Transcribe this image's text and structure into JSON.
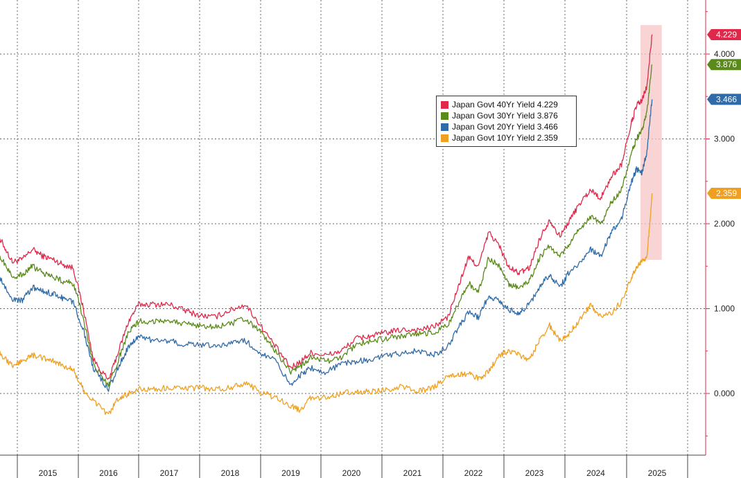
{
  "chart_data": {
    "type": "line",
    "title": "",
    "xlabel": "",
    "ylabel": "",
    "ylim": [
      -0.5,
      4.6
    ],
    "xlim": [
      "2014-08",
      "2025-06"
    ],
    "y_ticks": [
      "0.000",
      "1.000",
      "2.000",
      "3.000",
      "4.000"
    ],
    "y_tick_values": [
      0,
      1,
      2,
      3,
      4
    ],
    "x_ticks": [
      "2015",
      "2016",
      "2017",
      "2018",
      "2019",
      "2020",
      "2021",
      "2022",
      "2023",
      "2024",
      "2025"
    ],
    "grid": true,
    "legend_position": "top-right",
    "highlight_region": {
      "x_start": "2025-04",
      "x_end": "2025-06",
      "y_start": 1.6,
      "y_end": 4.3,
      "color": "#f5c6c6"
    },
    "series": [
      {
        "name": "Japan Govt 40Yr Yield",
        "last_value_label": "4.229",
        "color": "#e0294a",
        "x": [
          "2014-08",
          "2014-10",
          "2014-12",
          "2015-02",
          "2015-04",
          "2015-06",
          "2015-08",
          "2015-10",
          "2015-12",
          "2016-02",
          "2016-04",
          "2016-07",
          "2016-09",
          "2016-11",
          "2017-01",
          "2017-04",
          "2017-07",
          "2017-10",
          "2018-01",
          "2018-04",
          "2018-07",
          "2018-10",
          "2019-01",
          "2019-04",
          "2019-07",
          "2019-09",
          "2019-11",
          "2020-02",
          "2020-05",
          "2020-08",
          "2020-11",
          "2021-02",
          "2021-05",
          "2021-08",
          "2021-11",
          "2022-02",
          "2022-04",
          "2022-06",
          "2022-08",
          "2022-10",
          "2022-12",
          "2023-02",
          "2023-04",
          "2023-06",
          "2023-08",
          "2023-10",
          "2023-12",
          "2024-02",
          "2024-04",
          "2024-06",
          "2024-08",
          "2024-10",
          "2024-12",
          "2025-02",
          "2025-03",
          "2025-04",
          "2025-05",
          "2025-06"
        ],
        "values": [
          1.82,
          1.78,
          1.55,
          1.58,
          1.7,
          1.62,
          1.58,
          1.52,
          1.48,
          1.0,
          0.4,
          0.15,
          0.5,
          0.85,
          1.05,
          1.05,
          1.05,
          0.98,
          0.92,
          0.9,
          0.98,
          1.05,
          0.8,
          0.55,
          0.3,
          0.38,
          0.48,
          0.45,
          0.5,
          0.65,
          0.68,
          0.72,
          0.75,
          0.75,
          0.78,
          0.9,
          1.25,
          1.6,
          1.5,
          1.9,
          1.75,
          1.48,
          1.42,
          1.48,
          1.82,
          2.05,
          1.85,
          2.05,
          2.25,
          2.4,
          2.3,
          2.55,
          2.7,
          3.2,
          3.4,
          3.45,
          3.62,
          4.229
        ]
      },
      {
        "name": "Japan Govt 30Yr Yield",
        "last_value_label": "3.876",
        "color": "#5a8a1a",
        "x": [
          "2014-08",
          "2014-10",
          "2014-12",
          "2015-02",
          "2015-04",
          "2015-06",
          "2015-08",
          "2015-10",
          "2015-12",
          "2016-02",
          "2016-04",
          "2016-07",
          "2016-09",
          "2016-11",
          "2017-01",
          "2017-04",
          "2017-07",
          "2017-10",
          "2018-01",
          "2018-04",
          "2018-07",
          "2018-10",
          "2019-01",
          "2019-04",
          "2019-07",
          "2019-09",
          "2019-11",
          "2020-02",
          "2020-05",
          "2020-08",
          "2020-11",
          "2021-02",
          "2021-05",
          "2021-08",
          "2021-11",
          "2022-02",
          "2022-04",
          "2022-06",
          "2022-08",
          "2022-10",
          "2022-12",
          "2023-02",
          "2023-04",
          "2023-06",
          "2023-08",
          "2023-10",
          "2023-12",
          "2024-02",
          "2024-04",
          "2024-06",
          "2024-08",
          "2024-10",
          "2024-12",
          "2025-02",
          "2025-03",
          "2025-04",
          "2025-05",
          "2025-06"
        ],
        "values": [
          1.62,
          1.58,
          1.38,
          1.4,
          1.5,
          1.42,
          1.38,
          1.32,
          1.3,
          0.88,
          0.35,
          0.08,
          0.4,
          0.72,
          0.85,
          0.85,
          0.87,
          0.82,
          0.8,
          0.78,
          0.82,
          0.88,
          0.72,
          0.5,
          0.25,
          0.32,
          0.42,
          0.38,
          0.42,
          0.58,
          0.62,
          0.65,
          0.68,
          0.7,
          0.72,
          0.8,
          1.05,
          1.3,
          1.2,
          1.6,
          1.5,
          1.28,
          1.25,
          1.32,
          1.6,
          1.75,
          1.6,
          1.78,
          1.95,
          2.08,
          2.0,
          2.25,
          2.4,
          2.85,
          3.0,
          3.1,
          3.32,
          3.876
        ]
      },
      {
        "name": "Japan Govt 20Yr Yield",
        "last_value_label": "3.466",
        "color": "#2e6ba8",
        "x": [
          "2014-08",
          "2014-10",
          "2014-12",
          "2015-02",
          "2015-04",
          "2015-06",
          "2015-08",
          "2015-10",
          "2015-12",
          "2016-02",
          "2016-04",
          "2016-07",
          "2016-09",
          "2016-11",
          "2017-01",
          "2017-04",
          "2017-07",
          "2017-10",
          "2018-01",
          "2018-04",
          "2018-07",
          "2018-10",
          "2019-01",
          "2019-04",
          "2019-07",
          "2019-09",
          "2019-11",
          "2020-02",
          "2020-05",
          "2020-08",
          "2020-11",
          "2021-02",
          "2021-05",
          "2021-08",
          "2021-11",
          "2022-02",
          "2022-04",
          "2022-06",
          "2022-08",
          "2022-10",
          "2022-12",
          "2023-02",
          "2023-04",
          "2023-06",
          "2023-08",
          "2023-10",
          "2023-12",
          "2024-02",
          "2024-04",
          "2024-06",
          "2024-08",
          "2024-10",
          "2024-12",
          "2025-02",
          "2025-03",
          "2025-04",
          "2025-05",
          "2025-06"
        ],
        "values": [
          1.4,
          1.32,
          1.1,
          1.1,
          1.25,
          1.2,
          1.18,
          1.12,
          1.08,
          0.75,
          0.3,
          0.05,
          0.32,
          0.55,
          0.68,
          0.62,
          0.62,
          0.58,
          0.58,
          0.55,
          0.6,
          0.62,
          0.48,
          0.38,
          0.1,
          0.22,
          0.3,
          0.25,
          0.35,
          0.38,
          0.4,
          0.45,
          0.48,
          0.5,
          0.45,
          0.55,
          0.78,
          0.95,
          0.9,
          1.15,
          1.1,
          0.98,
          0.95,
          1.05,
          1.25,
          1.4,
          1.25,
          1.45,
          1.55,
          1.7,
          1.62,
          1.9,
          2.05,
          2.5,
          2.65,
          2.6,
          2.85,
          3.466
        ]
      },
      {
        "name": "Japan Govt 10Yr Yield",
        "last_value_label": "2.359",
        "color": "#f0a020",
        "x": [
          "2014-08",
          "2014-10",
          "2014-12",
          "2015-02",
          "2015-04",
          "2015-06",
          "2015-08",
          "2015-10",
          "2015-12",
          "2016-02",
          "2016-04",
          "2016-07",
          "2016-09",
          "2016-11",
          "2017-01",
          "2017-04",
          "2017-07",
          "2017-10",
          "2018-01",
          "2018-04",
          "2018-07",
          "2018-10",
          "2019-01",
          "2019-04",
          "2019-07",
          "2019-09",
          "2019-11",
          "2020-02",
          "2020-05",
          "2020-08",
          "2020-11",
          "2021-02",
          "2021-05",
          "2021-08",
          "2021-11",
          "2022-02",
          "2022-04",
          "2022-06",
          "2022-08",
          "2022-10",
          "2022-12",
          "2023-02",
          "2023-04",
          "2023-06",
          "2023-08",
          "2023-10",
          "2023-12",
          "2024-02",
          "2024-04",
          "2024-06",
          "2024-08",
          "2024-10",
          "2024-12",
          "2025-02",
          "2025-03",
          "2025-04",
          "2025-05",
          "2025-06"
        ],
        "values": [
          0.52,
          0.45,
          0.32,
          0.38,
          0.45,
          0.42,
          0.38,
          0.32,
          0.28,
          0.05,
          -0.08,
          -0.25,
          -0.05,
          0.0,
          0.05,
          0.05,
          0.07,
          0.05,
          0.07,
          0.05,
          0.07,
          0.12,
          0.02,
          -0.05,
          -0.15,
          -0.2,
          -0.05,
          -0.05,
          0.0,
          0.02,
          0.02,
          0.05,
          0.08,
          0.02,
          0.07,
          0.2,
          0.23,
          0.23,
          0.18,
          0.25,
          0.45,
          0.5,
          0.45,
          0.4,
          0.62,
          0.8,
          0.62,
          0.72,
          0.88,
          1.05,
          0.9,
          0.95,
          1.08,
          1.38,
          1.5,
          1.55,
          1.6,
          2.359
        ]
      }
    ]
  }
}
